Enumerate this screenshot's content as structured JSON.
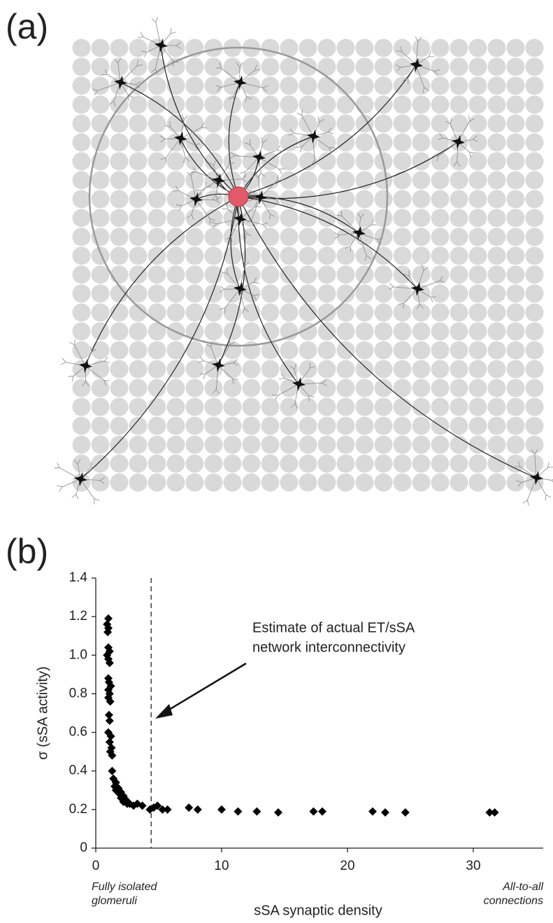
{
  "panel_labels": [
    "(a)",
    "(b)"
  ],
  "chart_data": {
    "type": "scatter",
    "xlabel": "sSA synaptic density",
    "ylabel": "σ (sSA activity)",
    "left_note": [
      "Fully isolated",
      "glomeruli"
    ],
    "right_note": [
      "All-to-all",
      "connections"
    ],
    "annotation": [
      "Estimate of actual ET/sSA",
      "network interconnectivity"
    ],
    "dashed_line_x": 4.4,
    "color": "#000000",
    "xlim": [
      0,
      35
    ],
    "xticks": [
      0,
      10,
      20,
      30
    ],
    "ylim": [
      0,
      1.4
    ],
    "yticks": [
      0,
      0.2,
      0.4,
      0.6,
      0.8,
      {
        "value": 1,
        "label": "1.0"
      },
      1.2,
      1.4
    ],
    "x": [
      1.0,
      0.9,
      1.0,
      0.95,
      1.0,
      1.1,
      0.9,
      1.0,
      1.1,
      1.0,
      1.05,
      1.2,
      1.0,
      1.1,
      1.0,
      1.15,
      1.05,
      1.1,
      1.0,
      1.2,
      1.1,
      1.25,
      1.15,
      1.3,
      1.3,
      1.4,
      1.6,
      1.5,
      1.8,
      1.6,
      2.0,
      1.9,
      2.2,
      2.0,
      2.4,
      2.2,
      2.5,
      2.7,
      3.0,
      3.3,
      3.7,
      4.3,
      4.6,
      4.9,
      5.3,
      5.7,
      7.4,
      8.1,
      10.0,
      11.3,
      12.8,
      14.5,
      17.3,
      18.0,
      22.0,
      23.0,
      24.6,
      31.3,
      31.7
    ],
    "values": [
      1.19,
      1.16,
      1.14,
      1.12,
      1.04,
      1.02,
      1.0,
      0.98,
      0.96,
      0.88,
      0.86,
      0.84,
      0.82,
      0.8,
      0.78,
      0.76,
      0.69,
      0.66,
      0.6,
      0.58,
      0.55,
      0.52,
      0.5,
      0.48,
      0.4,
      0.36,
      0.34,
      0.32,
      0.31,
      0.3,
      0.29,
      0.28,
      0.27,
      0.26,
      0.25,
      0.24,
      0.23,
      0.23,
      0.22,
      0.23,
      0.22,
      0.2,
      0.21,
      0.22,
      0.2,
      0.2,
      0.21,
      0.2,
      0.2,
      0.19,
      0.19,
      0.185,
      0.19,
      0.19,
      0.19,
      0.185,
      0.185,
      0.185,
      0.185
    ]
  }
}
